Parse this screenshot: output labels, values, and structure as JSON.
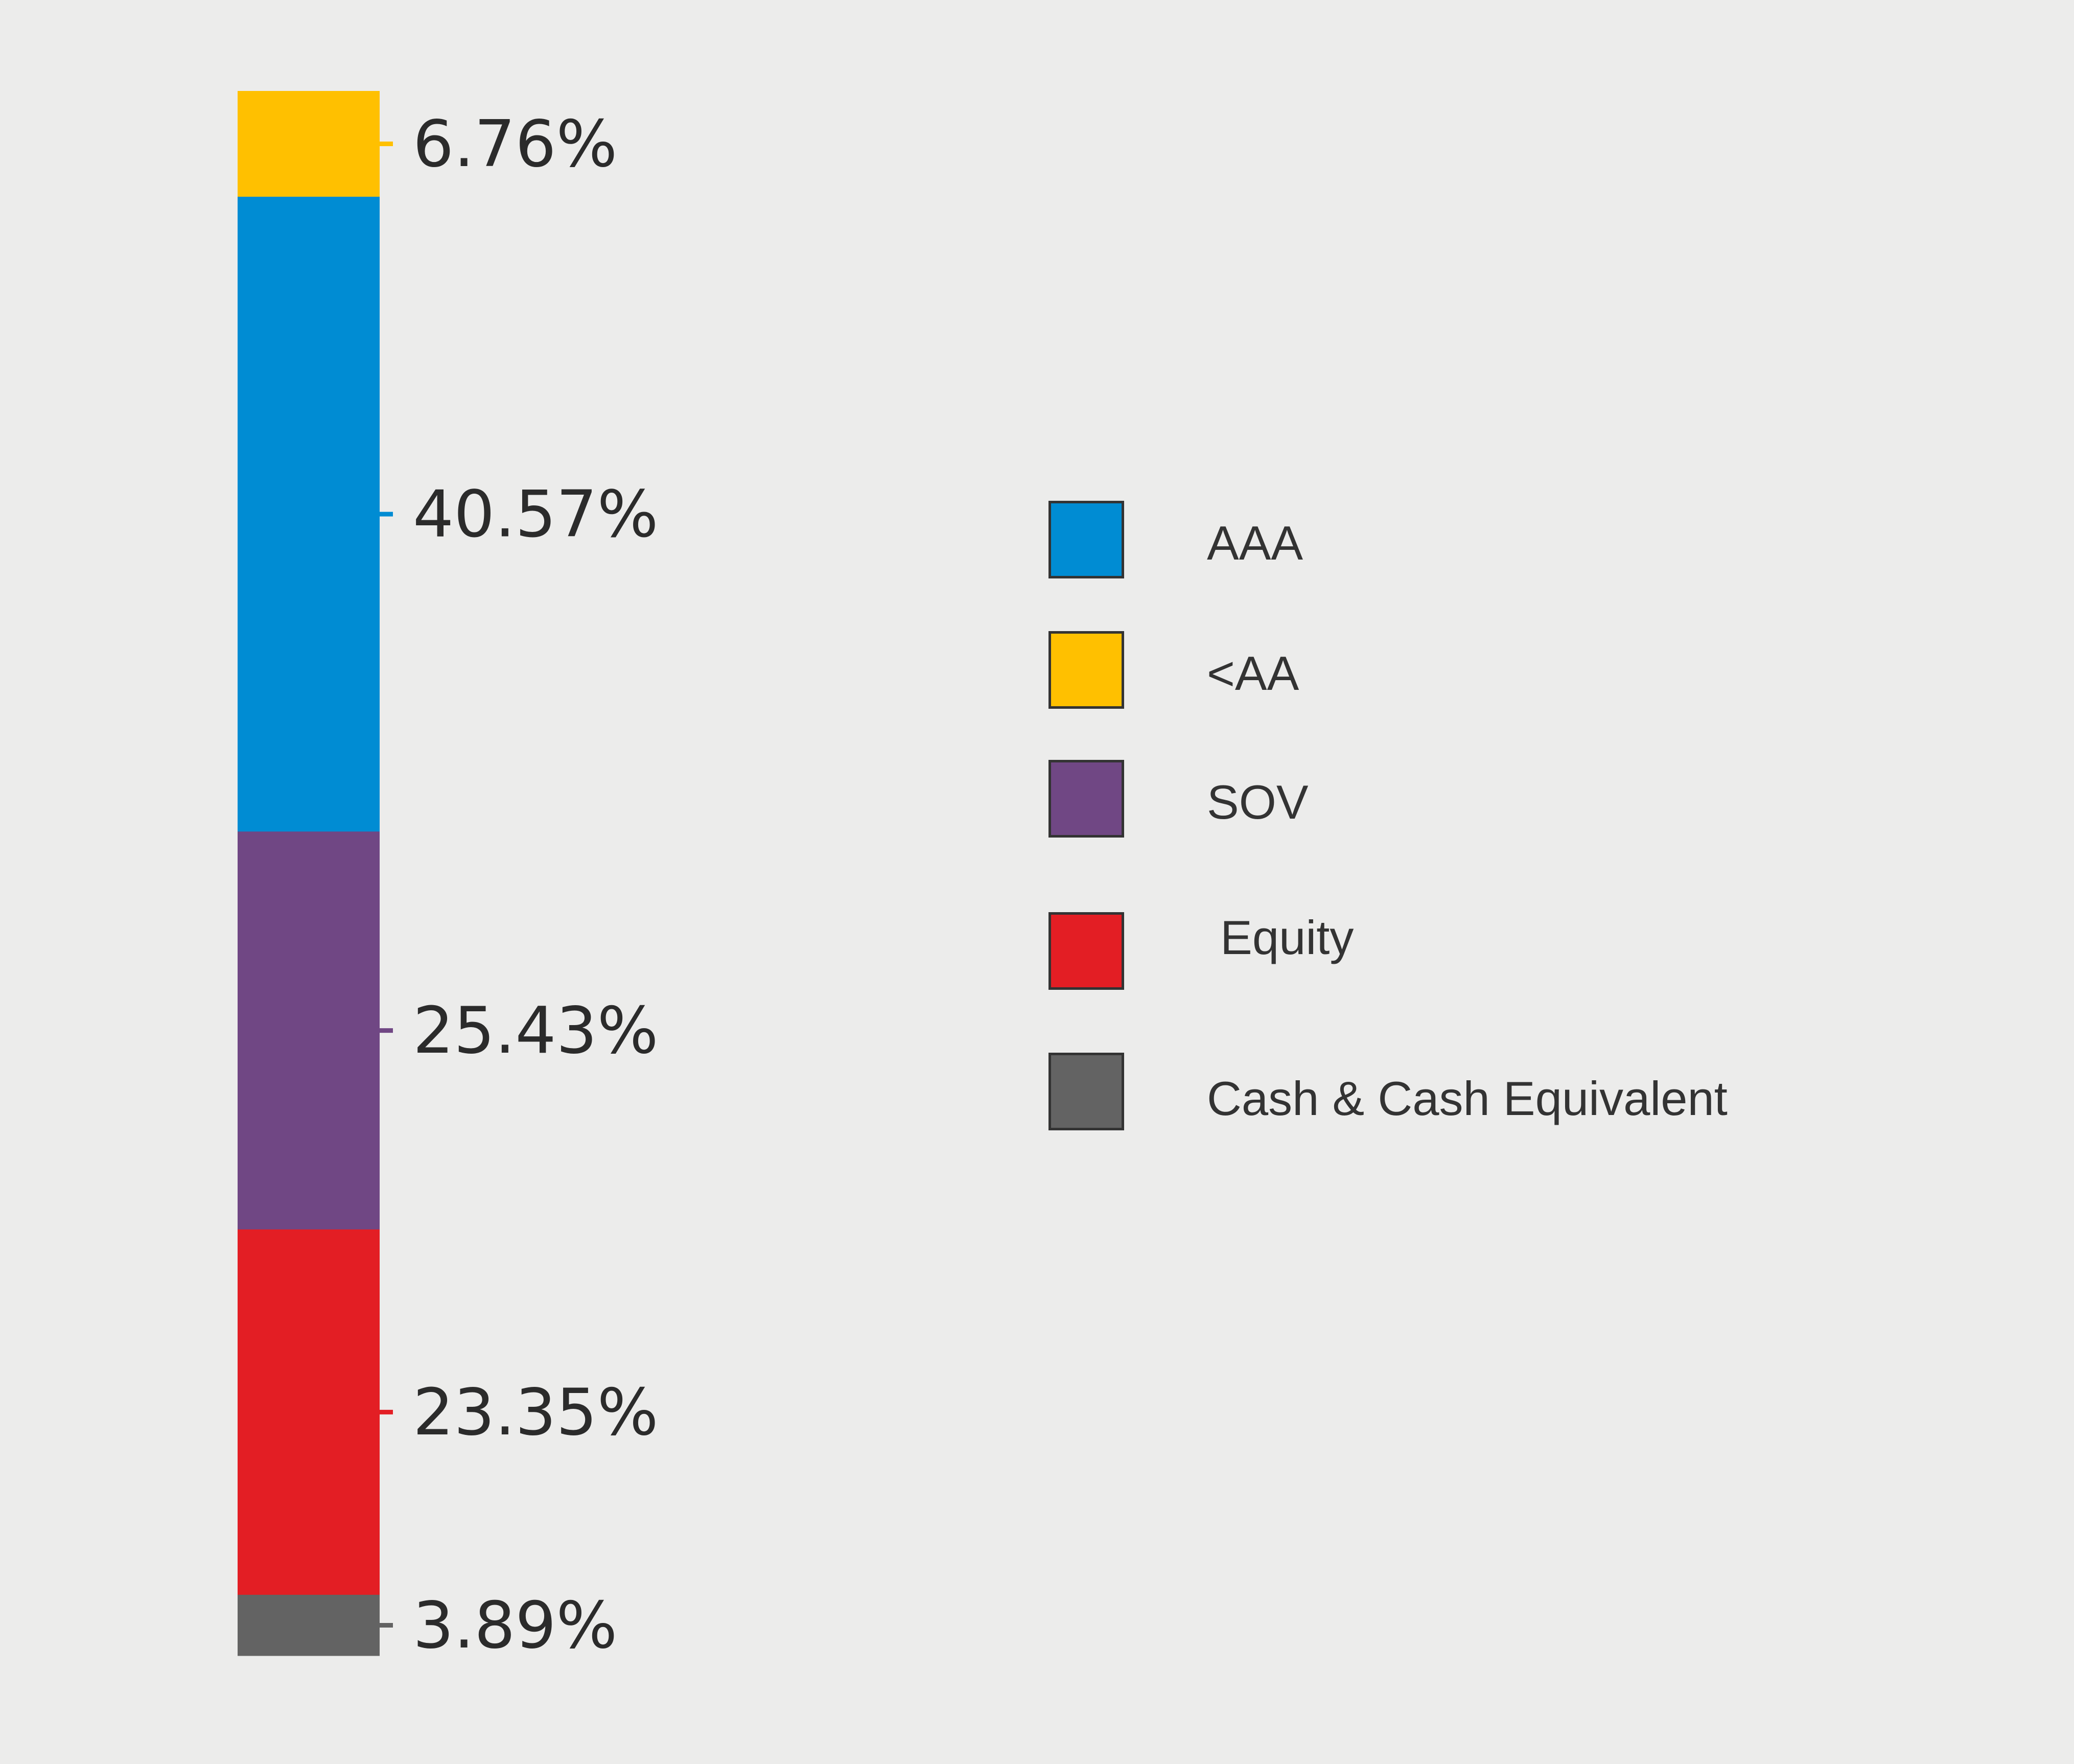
{
  "chart_data": {
    "type": "bar",
    "subtype": "stacked-single",
    "unit": "%",
    "segments": [
      {
        "name": "<AA",
        "value": 6.76,
        "label": "6.76%",
        "color": "#FFC000"
      },
      {
        "name": "AAA",
        "value": 40.57,
        "label": "40.57%",
        "color": "#008CD3"
      },
      {
        "name": "SOV",
        "value": 25.43,
        "label": "25.43%",
        "color": "#704784"
      },
      {
        "name": "Equity",
        "value": 23.35,
        "label": "23.35%",
        "color": "#E31E24"
      },
      {
        "name": "Cash & Cash Equivalent",
        "value": 3.89,
        "label": "3.89%",
        "color": "#636363"
      }
    ],
    "legend": {
      "placement": "right",
      "items": [
        {
          "label": "AAA",
          "color": "#008CD3"
        },
        {
          "label": "<AA",
          "color": "#FFC000"
        },
        {
          "label": "SOV",
          "color": "#704784"
        },
        {
          "label": " Equity",
          "color": "#E31E24"
        },
        {
          "label": "Cash & Cash Equivalent",
          "color": "#636363"
        }
      ]
    },
    "grid": false,
    "background": "#ECECEB"
  }
}
